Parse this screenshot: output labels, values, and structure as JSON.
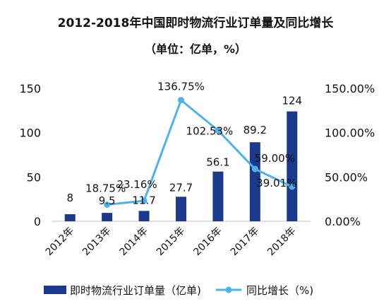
{
  "chart_data": {
    "type": "bar+line",
    "title": "2012-2018年中国即时物流行业订单量及同比增长",
    "subtitle": "（单位：亿单，%）",
    "categories": [
      "2012年",
      "2013年",
      "2014年",
      "2015年",
      "2016年",
      "2017年",
      "2018年"
    ],
    "series": [
      {
        "name": "即时物流行业订单量（亿单)",
        "type": "bar",
        "axis": "left",
        "values": [
          8,
          9.5,
          11.7,
          27.7,
          56.1,
          89.2,
          124
        ],
        "labels": [
          "8",
          "9.5",
          "11.7",
          "27.7",
          "56.1",
          "89.2",
          "124"
        ],
        "color": "#1b3a8c"
      },
      {
        "name": "同比增长（%)",
        "type": "line",
        "axis": "right",
        "values": [
          null,
          18.75,
          23.16,
          136.75,
          102.53,
          59.0,
          39.01
        ],
        "labels": [
          "",
          "18.75%",
          "23.16%",
          "136.75%",
          "102.53%",
          "59.00%",
          "39.01%"
        ],
        "color": "#4db3e6"
      }
    ],
    "y_left": {
      "min": 0,
      "max": 150,
      "ticks": [
        "0",
        "50",
        "100",
        "150"
      ]
    },
    "y_right": {
      "min": 0,
      "max": 150,
      "ticks": [
        "0.00%",
        "50.00%",
        "100.00%",
        "150.00%"
      ]
    },
    "grid": false,
    "legend": "bottom"
  }
}
